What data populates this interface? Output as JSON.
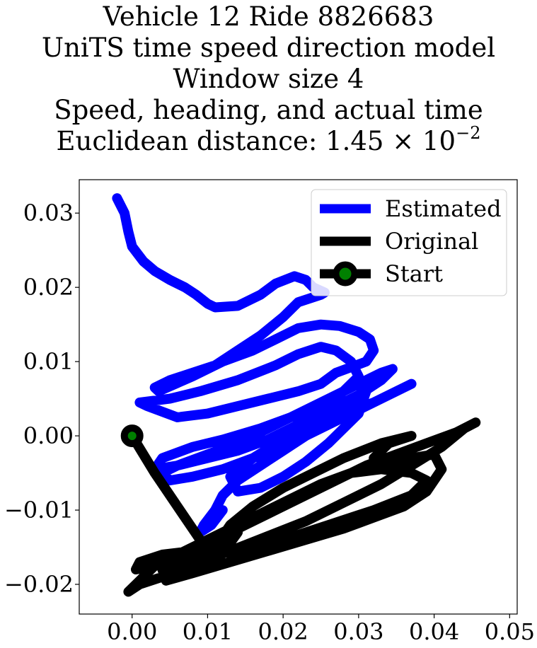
{
  "title_lines": [
    "Vehicle 12 Ride 8826683",
    "UniTS time speed direction model",
    "Window size 4",
    "Speed, heading, and actual time"
  ],
  "title_distance": {
    "prefix": "Euclidean distance: 1.45 × 10",
    "exponent": "−2"
  },
  "chart_data": {
    "type": "line",
    "xlim": [
      -0.007,
      0.051
    ],
    "ylim": [
      -0.024,
      0.0345
    ],
    "x_ticks": [
      {
        "value": 0.0,
        "label": "0.00"
      },
      {
        "value": 0.01,
        "label": "0.01"
      },
      {
        "value": 0.02,
        "label": "0.02"
      },
      {
        "value": 0.03,
        "label": "0.03"
      },
      {
        "value": 0.04,
        "label": "0.04"
      },
      {
        "value": 0.05,
        "label": "0.05"
      }
    ],
    "y_ticks": [
      {
        "value": 0.03,
        "label": "0.03"
      },
      {
        "value": 0.02,
        "label": "0.02"
      },
      {
        "value": 0.01,
        "label": "0.01"
      },
      {
        "value": 0.0,
        "label": "0.00"
      },
      {
        "value": -0.01,
        "label": "−0.01"
      },
      {
        "value": -0.02,
        "label": "−0.02"
      }
    ],
    "grid": false,
    "legend_position": "top-right",
    "legend": [
      "Estimated",
      "Original",
      "Start"
    ],
    "series": [
      {
        "name": "Estimated",
        "color": "#0000ff",
        "points": [
          [
            -0.002,
            0.032
          ],
          [
            -0.001,
            0.03
          ],
          [
            -0.0005,
            0.0275
          ],
          [
            0.0,
            0.0255
          ],
          [
            0.0015,
            0.0235
          ],
          [
            0.003,
            0.0222
          ],
          [
            0.005,
            0.021
          ],
          [
            0.007,
            0.02
          ],
          [
            0.0085,
            0.019
          ],
          [
            0.01,
            0.0178
          ],
          [
            0.011,
            0.0173
          ],
          [
            0.014,
            0.0175
          ],
          [
            0.017,
            0.019
          ],
          [
            0.019,
            0.0205
          ],
          [
            0.0215,
            0.0215
          ],
          [
            0.023,
            0.021
          ],
          [
            0.024,
            0.02
          ],
          [
            0.0255,
            0.0193
          ],
          [
            0.025,
            0.019
          ],
          [
            0.022,
            0.018
          ],
          [
            0.02,
            0.016
          ],
          [
            0.017,
            0.0135
          ],
          [
            0.014,
            0.0115
          ],
          [
            0.011,
            0.0095
          ],
          [
            0.008,
            0.0085
          ],
          [
            0.005,
            0.0075
          ],
          [
            0.003,
            0.0065
          ],
          [
            0.0035,
            0.006
          ],
          [
            0.008,
            0.008
          ],
          [
            0.012,
            0.01
          ],
          [
            0.016,
            0.0115
          ],
          [
            0.019,
            0.013
          ],
          [
            0.022,
            0.0145
          ],
          [
            0.025,
            0.015
          ],
          [
            0.0275,
            0.0148
          ],
          [
            0.03,
            0.014
          ],
          [
            0.0315,
            0.013
          ],
          [
            0.032,
            0.0115
          ],
          [
            0.031,
            0.01
          ],
          [
            0.027,
            0.0085
          ],
          [
            0.025,
            0.007
          ],
          [
            0.022,
            0.006
          ],
          [
            0.018,
            0.005
          ],
          [
            0.014,
            0.004
          ],
          [
            0.01,
            0.003
          ],
          [
            0.006,
            0.0025
          ],
          [
            0.002,
            0.004
          ],
          [
            0.001,
            0.0045
          ],
          [
            0.005,
            0.005
          ],
          [
            0.009,
            0.006
          ],
          [
            0.014,
            0.0075
          ],
          [
            0.019,
            0.0095
          ],
          [
            0.022,
            0.011
          ],
          [
            0.025,
            0.012
          ],
          [
            0.027,
            0.0115
          ],
          [
            0.029,
            0.01
          ],
          [
            0.03,
            0.008
          ],
          [
            0.028,
            0.006
          ],
          [
            0.025,
            0.004
          ],
          [
            0.021,
            0.0025
          ],
          [
            0.017,
            0.001
          ],
          [
            0.012,
            -0.0005
          ],
          [
            0.008,
            -0.0015
          ],
          [
            0.004,
            -0.003
          ],
          [
            0.003,
            -0.0045
          ],
          [
            0.006,
            -0.004
          ],
          [
            0.01,
            -0.003
          ],
          [
            0.014,
            -0.002
          ],
          [
            0.018,
            -0.0005
          ],
          [
            0.022,
            0.0015
          ],
          [
            0.026,
            0.0035
          ],
          [
            0.03,
            0.0055
          ],
          [
            0.033,
            0.0075
          ],
          [
            0.0345,
            0.009
          ],
          [
            0.033,
            0.0085
          ],
          [
            0.03,
            0.007
          ],
          [
            0.026,
            0.005
          ],
          [
            0.022,
            0.003
          ],
          [
            0.018,
            0.001
          ],
          [
            0.014,
            -0.001
          ],
          [
            0.01,
            -0.0025
          ],
          [
            0.006,
            -0.004
          ],
          [
            0.004,
            -0.005
          ],
          [
            0.005,
            -0.006
          ],
          [
            0.008,
            -0.0055
          ],
          [
            0.012,
            -0.0045
          ],
          [
            0.016,
            -0.003
          ],
          [
            0.02,
            -0.0015
          ],
          [
            0.024,
            0.0005
          ],
          [
            0.028,
            0.0025
          ],
          [
            0.032,
            0.0045
          ],
          [
            0.036,
            0.0065
          ],
          [
            0.037,
            0.007
          ],
          [
            0.035,
            0.006
          ],
          [
            0.032,
            0.0045
          ],
          [
            0.028,
            0.003
          ],
          [
            0.024,
            0.0015
          ],
          [
            0.02,
            -0.0005
          ],
          [
            0.016,
            -0.003
          ],
          [
            0.013,
            -0.0055
          ],
          [
            0.014,
            -0.0075
          ],
          [
            0.017,
            -0.007
          ],
          [
            0.02,
            -0.0055
          ],
          [
            0.023,
            -0.0035
          ],
          [
            0.026,
            -0.001
          ],
          [
            0.028,
            0.001
          ],
          [
            0.03,
            0.003
          ],
          [
            0.031,
            0.006
          ],
          [
            0.029,
            0.004
          ],
          [
            0.026,
            0.002
          ],
          [
            0.023,
            0.0
          ],
          [
            0.02,
            -0.002
          ],
          [
            0.017,
            -0.004
          ],
          [
            0.014,
            -0.006
          ],
          [
            0.012,
            -0.008
          ],
          [
            0.011,
            -0.01
          ],
          [
            0.0095,
            -0.012
          ],
          [
            0.009,
            -0.013
          ],
          [
            0.0105,
            -0.012
          ],
          [
            0.012,
            -0.01
          ]
        ]
      },
      {
        "name": "Original",
        "color": "#000000",
        "points": [
          [
            0.0,
            0.0
          ],
          [
            0.003,
            -0.005
          ],
          [
            0.006,
            -0.0095
          ],
          [
            0.009,
            -0.014
          ],
          [
            0.0115,
            -0.0165
          ],
          [
            0.014,
            -0.013
          ],
          [
            0.011,
            -0.015
          ],
          [
            0.008,
            -0.0155
          ],
          [
            0.004,
            -0.016
          ],
          [
            0.001,
            -0.017
          ],
          [
            0.0005,
            -0.018
          ],
          [
            0.003,
            -0.0175
          ],
          [
            0.008,
            -0.0165
          ],
          [
            0.014,
            -0.0155
          ],
          [
            0.02,
            -0.014
          ],
          [
            0.026,
            -0.012
          ],
          [
            0.032,
            -0.01
          ],
          [
            0.037,
            -0.008
          ],
          [
            0.039,
            -0.006
          ],
          [
            0.037,
            -0.005
          ],
          [
            0.033,
            -0.0045
          ],
          [
            0.029,
            -0.005
          ],
          [
            0.025,
            -0.0065
          ],
          [
            0.021,
            -0.0085
          ],
          [
            0.017,
            -0.0105
          ],
          [
            0.013,
            -0.0125
          ],
          [
            0.009,
            -0.0145
          ],
          [
            0.006,
            -0.016
          ],
          [
            0.003,
            -0.0175
          ],
          [
            0.001,
            -0.0195
          ],
          [
            -0.0005,
            -0.021
          ],
          [
            0.001,
            -0.02
          ],
          [
            0.004,
            -0.019
          ],
          [
            0.008,
            -0.0175
          ],
          [
            0.013,
            -0.0155
          ],
          [
            0.018,
            -0.0135
          ],
          [
            0.023,
            -0.0115
          ],
          [
            0.028,
            -0.009
          ],
          [
            0.033,
            -0.0065
          ],
          [
            0.037,
            -0.004
          ],
          [
            0.041,
            -0.0015
          ],
          [
            0.044,
            0.001
          ],
          [
            0.0455,
            0.0018
          ],
          [
            0.043,
            0.0005
          ],
          [
            0.039,
            -0.001
          ],
          [
            0.035,
            -0.0025
          ],
          [
            0.031,
            -0.004
          ],
          [
            0.027,
            -0.006
          ],
          [
            0.023,
            -0.008
          ],
          [
            0.019,
            -0.01
          ],
          [
            0.015,
            -0.012
          ],
          [
            0.011,
            -0.014
          ],
          [
            0.007,
            -0.016
          ],
          [
            0.004,
            -0.018
          ],
          [
            0.0045,
            -0.0195
          ],
          [
            0.008,
            -0.0185
          ],
          [
            0.013,
            -0.017
          ],
          [
            0.018,
            -0.0155
          ],
          [
            0.023,
            -0.014
          ],
          [
            0.028,
            -0.0125
          ],
          [
            0.032,
            -0.011
          ],
          [
            0.036,
            -0.0095
          ],
          [
            0.039,
            -0.0075
          ],
          [
            0.041,
            -0.0045
          ],
          [
            0.04,
            -0.0025
          ],
          [
            0.037,
            -0.003
          ],
          [
            0.034,
            -0.004
          ],
          [
            0.032,
            -0.003
          ],
          [
            0.034,
            -0.001
          ],
          [
            0.037,
            0.0
          ],
          [
            0.033,
            -0.001
          ],
          [
            0.028,
            -0.003
          ],
          [
            0.024,
            -0.005
          ],
          [
            0.02,
            -0.007
          ],
          [
            0.016,
            -0.0095
          ],
          [
            0.013,
            -0.012
          ],
          [
            0.011,
            -0.015
          ],
          [
            0.0105,
            -0.0165
          ]
        ]
      }
    ],
    "start": {
      "name": "Start",
      "x": 0.0,
      "y": 0.0,
      "marker_color": "#008000",
      "edge_color": "#000000"
    }
  }
}
